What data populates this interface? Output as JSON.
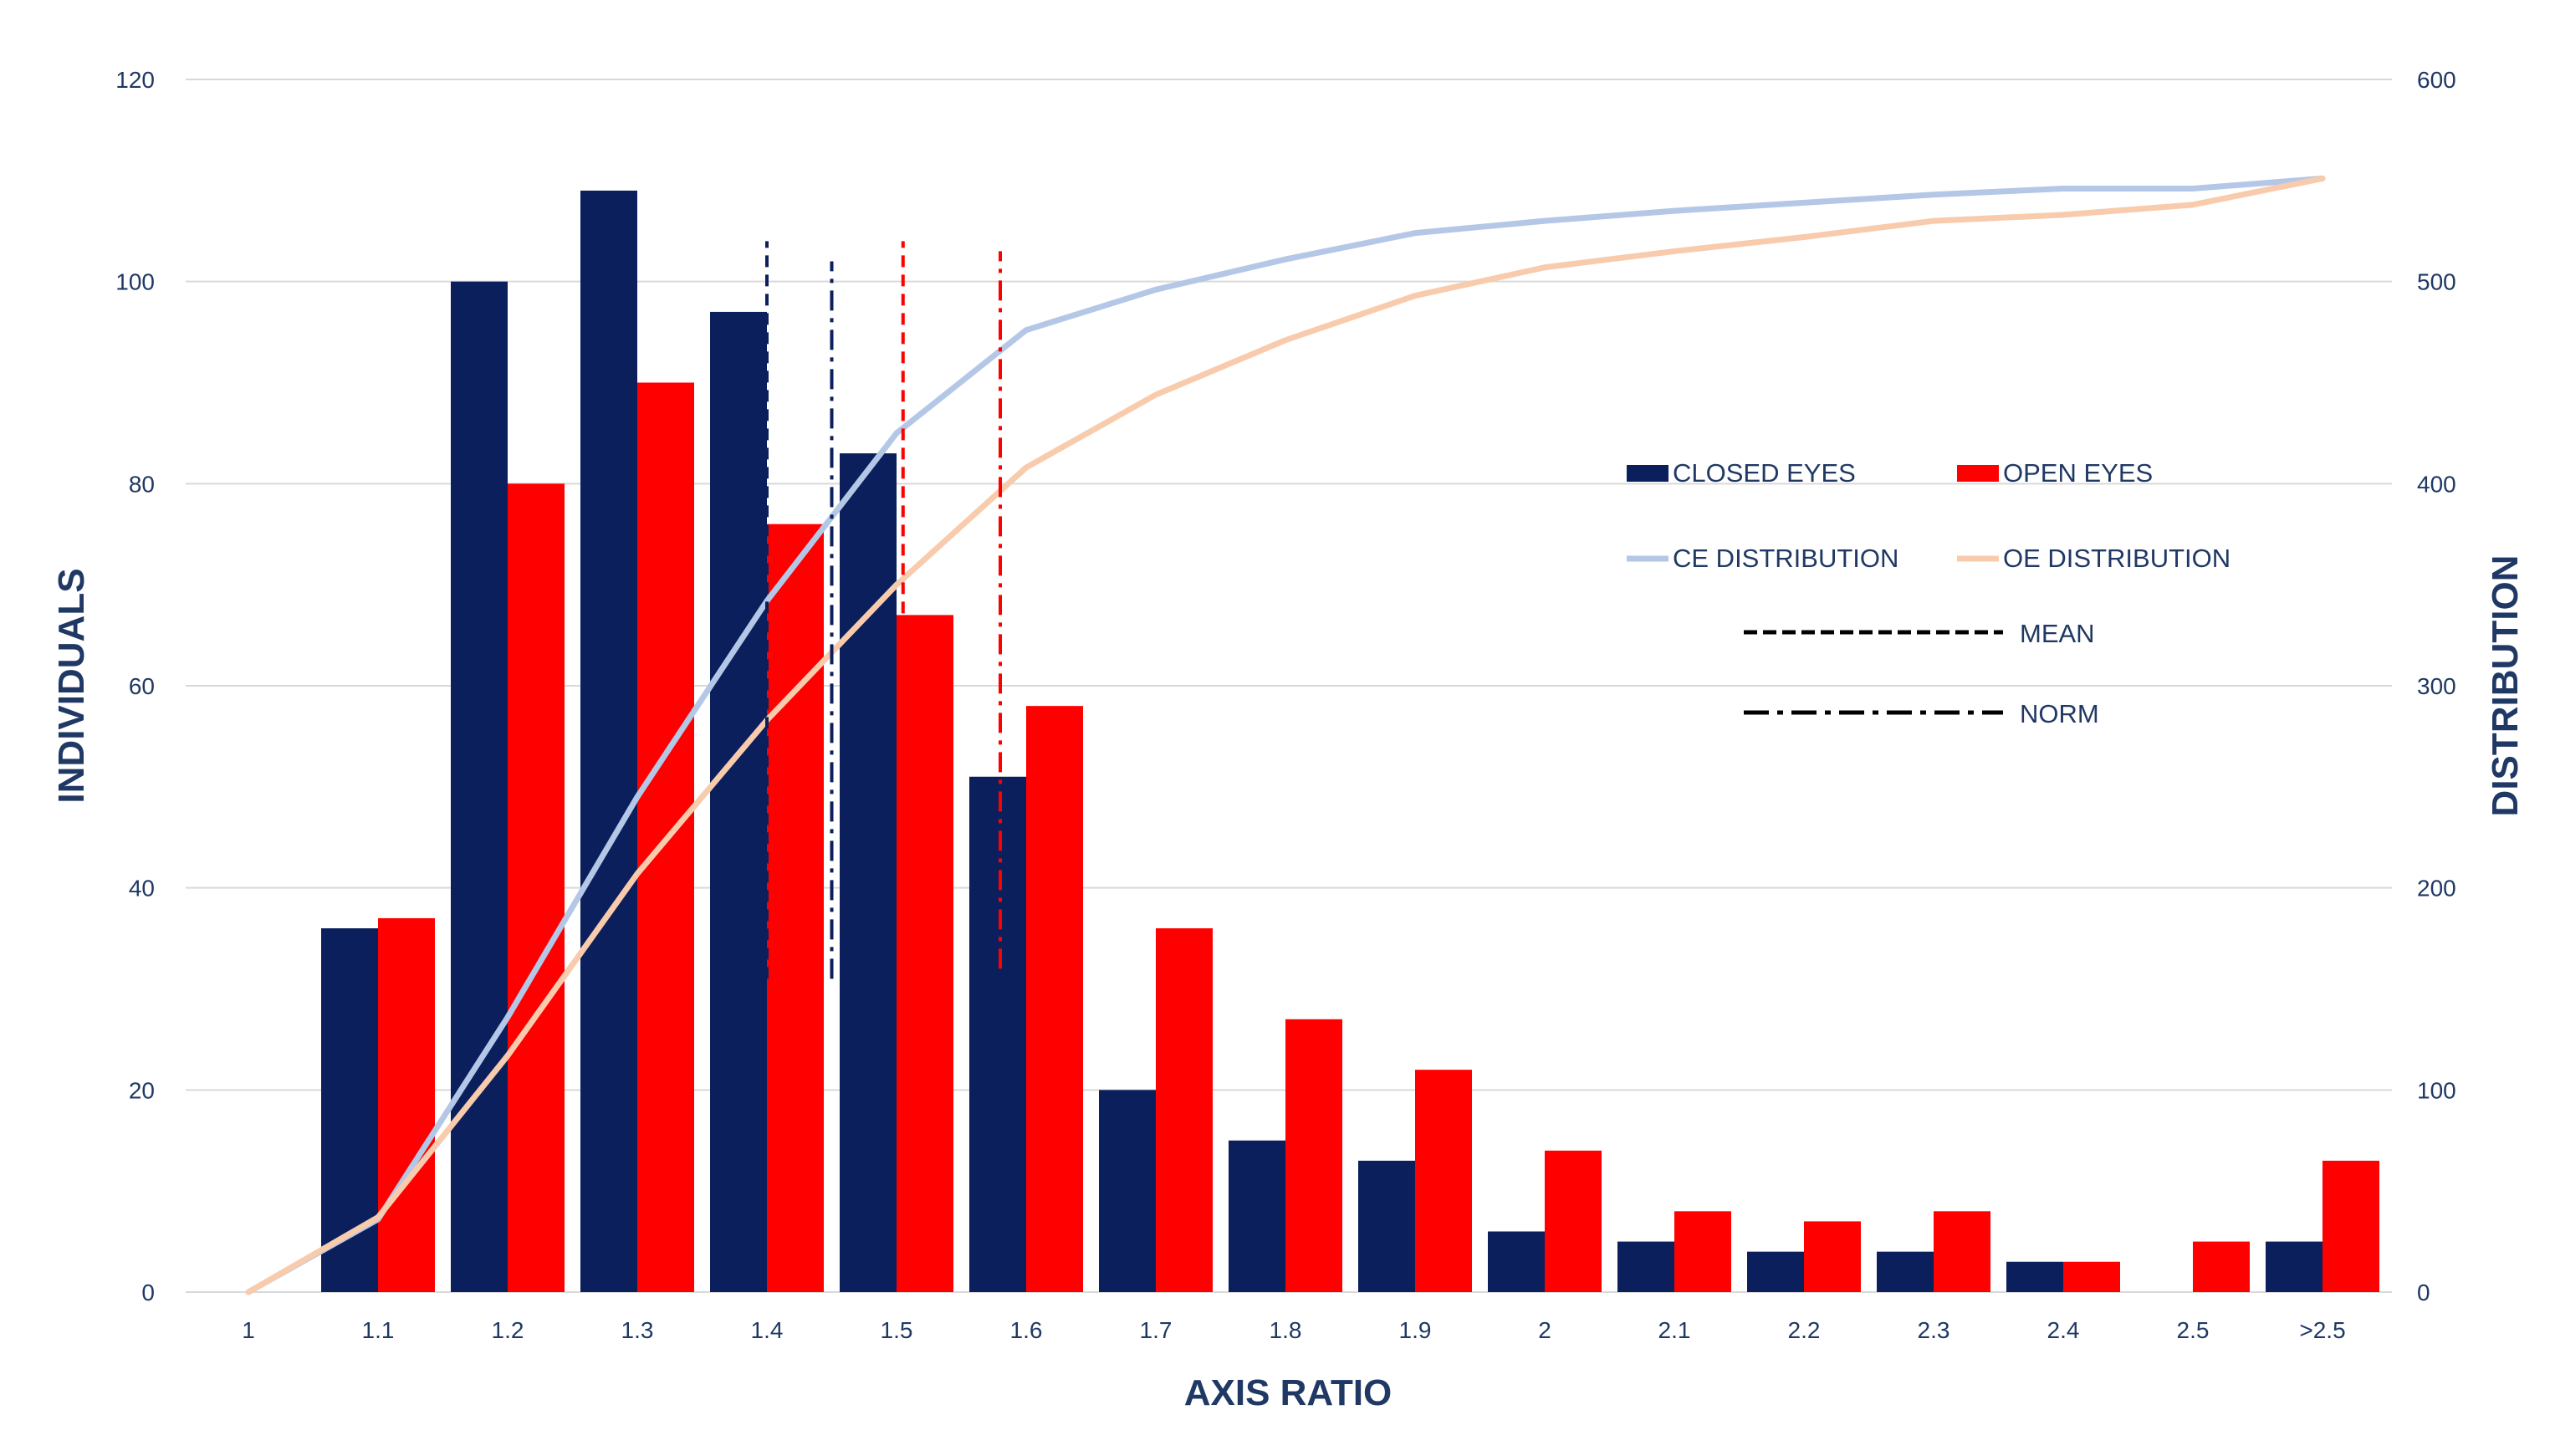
{
  "chart_data": {
    "type": "bar",
    "categories": [
      "1",
      "1.1",
      "1.2",
      "1.3",
      "1.4",
      "1.5",
      "1.6",
      "1.7",
      "1.8",
      "1.9",
      "2",
      "2.1",
      "2.2",
      "2.3",
      "2.4",
      "2.5",
      ">2.5"
    ],
    "series": [
      {
        "name": "CLOSED EYES",
        "type": "bar",
        "axis": "left",
        "color": "#0b1f5c",
        "values": [
          0,
          36,
          100,
          109,
          97,
          83,
          51,
          20,
          15,
          13,
          6,
          5,
          4,
          4,
          3,
          0,
          5
        ]
      },
      {
        "name": "OPEN EYES",
        "type": "bar",
        "axis": "left",
        "color": "#ff0000",
        "values": [
          0,
          37,
          80,
          90,
          76,
          67,
          58,
          36,
          27,
          22,
          14,
          8,
          7,
          8,
          3,
          5,
          13
        ]
      },
      {
        "name": "CE DISTRIBUTION",
        "type": "line",
        "axis": "right",
        "color": "#b4c7e7",
        "values": [
          0,
          36,
          136,
          245,
          342,
          425,
          476,
          496,
          511,
          524,
          530,
          535,
          539,
          543,
          546,
          546,
          551
        ]
      },
      {
        "name": "OE DISTRIBUTION",
        "type": "line",
        "axis": "right",
        "color": "#f8cbad",
        "values": [
          0,
          37,
          117,
          207,
          283,
          350,
          408,
          444,
          471,
          493,
          507,
          515,
          522,
          530,
          533,
          538,
          551
        ]
      }
    ],
    "reference_lines": [
      {
        "name": "MEAN",
        "eye": "closed",
        "x": 1.4,
        "style": "dashed",
        "color": "#0b1f5c",
        "range": [
          31,
          104
        ]
      },
      {
        "name": "NORM",
        "eye": "closed",
        "x": 1.45,
        "style": "dashdot",
        "color": "#0b1f5c",
        "range": [
          31,
          102
        ]
      },
      {
        "name": "MEAN",
        "eye": "open",
        "x": 1.505,
        "style": "dashed",
        "color": "#ff0000",
        "range": [
          31,
          104
        ]
      },
      {
        "name": "NORM",
        "eye": "open",
        "x": 1.58,
        "style": "dashdot",
        "color": "#ff0000",
        "range": [
          32,
          103
        ]
      }
    ],
    "title": "",
    "xlabel": "AXIS RATIO",
    "ylabel": "INDIVIDUALS",
    "y2label": "DISTRIBUTION",
    "ylim": [
      0,
      120
    ],
    "y2lim": [
      0,
      600
    ],
    "yticks": [
      "0",
      "20",
      "40",
      "60",
      "80",
      "100",
      "120"
    ],
    "y2ticks": [
      "0",
      "100",
      "200",
      "300",
      "400",
      "500",
      "600"
    ],
    "grid": true,
    "legend": {
      "placement": "right",
      "items": [
        {
          "label": "CLOSED EYES",
          "kind": "bar",
          "color": "#0b1f5c"
        },
        {
          "label": "OPEN EYES",
          "kind": "bar",
          "color": "#ff0000"
        },
        {
          "label": "CE DISTRIBUTION",
          "kind": "line",
          "color": "#b4c7e7"
        },
        {
          "label": "OE DISTRIBUTION",
          "kind": "line",
          "color": "#f8cbad"
        },
        {
          "label": "MEAN",
          "kind": "dashed",
          "color": "#000000"
        },
        {
          "label": "NORM",
          "kind": "dashdot",
          "color": "#000000"
        }
      ]
    },
    "colors": {
      "text": "#1f3864",
      "grid": "#d9d9d9"
    }
  }
}
